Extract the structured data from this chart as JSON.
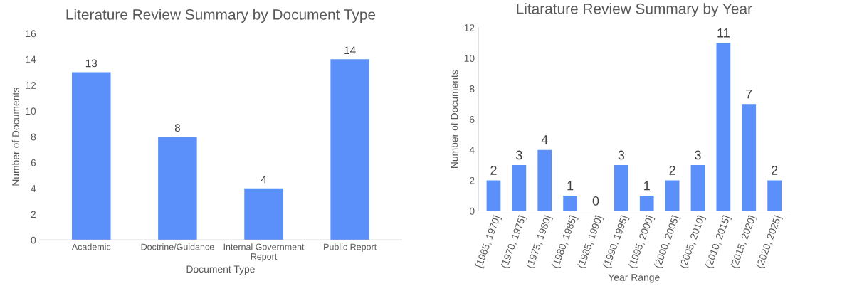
{
  "chart_data": [
    {
      "type": "bar",
      "title": "Literature Review Summary by Document Type",
      "xlabel": "Document Type",
      "ylabel": "Number of Documents",
      "categories": [
        "Academic",
        "Doctrine/Guidance",
        "Internal Government Report",
        "Public Report"
      ],
      "values": [
        13,
        8,
        4,
        14
      ],
      "color": "#5b8ff9",
      "ylim": [
        0,
        16
      ],
      "yticks": [
        0,
        2,
        4,
        6,
        8,
        10,
        12,
        14,
        16
      ],
      "grid": false,
      "data_labels": true
    },
    {
      "type": "bar",
      "title": "Litarature Review Summary by Year",
      "xlabel": "Year Range",
      "ylabel": "Number of Documents",
      "categories": [
        "[1965, 1970]",
        "(1970, 1975]",
        "(1975, 1980]",
        "(1980, 1985]",
        "(1985, 1990]",
        "(1990, 1995]",
        "(1995, 2000]",
        "(2000, 2005]",
        "(2005, 2010]",
        "(2010, 2015]",
        "(2015, 2020]",
        "(2020, 2025]"
      ],
      "values": [
        2,
        3,
        4,
        1,
        0,
        3,
        1,
        2,
        3,
        11,
        7,
        2
      ],
      "color": "#5b8ff9",
      "ylim": [
        0,
        12
      ],
      "yticks": [
        0,
        2,
        4,
        6,
        8,
        10,
        12
      ],
      "grid": false,
      "data_labels": true
    }
  ]
}
